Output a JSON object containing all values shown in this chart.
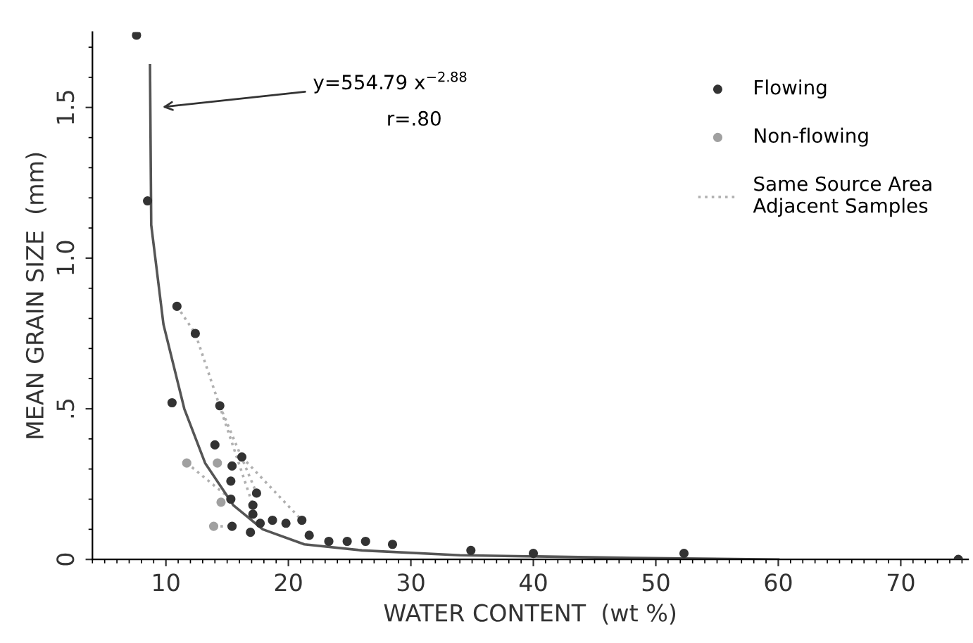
{
  "chart_data": {
    "type": "scatter",
    "xlabel": "WATER CONTENT  (wt %)",
    "ylabel": "MEAN GRAIN SIZE  (mm)",
    "xlim": [
      4,
      75.5
    ],
    "ylim": [
      0,
      1.75
    ],
    "xticks": [
      10,
      20,
      30,
      40,
      50,
      60,
      70
    ],
    "yticks": [
      0,
      {
        "value": 0.5,
        "label": ".5"
      },
      {
        "value": 1.0,
        "label": "1.0"
      },
      {
        "value": 1.5,
        "label": "1.5"
      }
    ],
    "grid": false,
    "legend": "right",
    "marker": "circle",
    "series": [
      {
        "name": "Flowing",
        "color": "#333333",
        "x": [
          7.6,
          8.5,
          10.9,
          12.4,
          10.5,
          14.4,
          14.0,
          15.4,
          16.2,
          15.3,
          15.3,
          17.4,
          17.1,
          17.1,
          17.7,
          18.7,
          19.8,
          21.1,
          15.4,
          16.9,
          21.7,
          23.3,
          24.8,
          26.3,
          28.5,
          34.9,
          40,
          52.3,
          74.7
        ],
        "values": [
          1.74,
          1.19,
          0.84,
          0.75,
          0.52,
          0.51,
          0.38,
          0.31,
          0.34,
          0.26,
          0.2,
          0.22,
          0.18,
          0.15,
          0.12,
          0.13,
          0.12,
          0.13,
          0.11,
          0.09,
          0.08,
          0.06,
          0.06,
          0.06,
          0.05,
          0.03,
          0.02,
          0.02,
          0.0
        ]
      },
      {
        "name": "Non-flowing",
        "color": "#a0a0a0",
        "x": [
          11.7,
          14.2,
          14.5,
          13.9
        ],
        "values": [
          0.32,
          0.32,
          0.19,
          0.11
        ]
      },
      {
        "name": "Same Source Area\nAdjacent Samples",
        "color": "#b0b0b0",
        "type": "line",
        "line_style": "dotted",
        "marker": "none",
        "x": [
          10.9,
          12.4,
          17.1,
          null,
          14.4,
          17.4,
          null,
          11.7,
          15.3,
          null,
          16.2,
          21.1,
          null,
          13.9,
          15.4
        ],
        "values": [
          0.84,
          0.75,
          0.18,
          null,
          0.51,
          0.22,
          null,
          0.32,
          0.2,
          null,
          0.34,
          0.13,
          null,
          0.11,
          0.11
        ]
      },
      {
        "color": "#555555",
        "type": "line",
        "line_style": "solid",
        "marker": "none",
        "x": [
          8.7,
          8.8,
          9.8,
          11.5,
          13.2,
          15.5,
          17.9,
          21.3,
          26,
          34,
          48,
          60
        ],
        "values": [
          1.64,
          1.11,
          0.78,
          0.5,
          0.32,
          0.18,
          0.1,
          0.05,
          0.03,
          0.014,
          0.005,
          0.0
        ]
      }
    ],
    "annotations": [
      {
        "text": "y=554.79 x$^{−2.88}$",
        "x": 9.4,
        "y": 1.5
      },
      "r=.80"
    ]
  }
}
